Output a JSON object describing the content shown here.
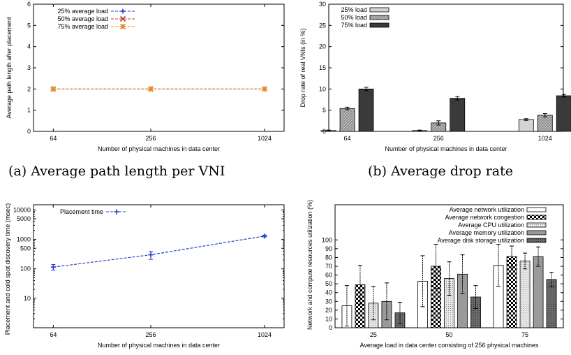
{
  "captions": {
    "a": "(a) Average path length per VNI",
    "b": "(b) Average drop rate"
  },
  "chart_data": [
    {
      "id": "a",
      "type": "line",
      "xlabel": "Number of physical machines in data center",
      "ylabel": "Average path length after placement",
      "categories": [
        "64",
        "256",
        "1024"
      ],
      "ylim": [
        0,
        6
      ],
      "yticks": [
        0,
        1,
        2,
        3,
        4,
        5,
        6
      ],
      "legend_position": "top-left",
      "series": [
        {
          "name": "25% average load",
          "values": [
            2,
            2,
            2
          ],
          "color": "#1f3fd6",
          "marker": "plus"
        },
        {
          "name": "50% average load",
          "values": [
            2,
            2,
            2
          ],
          "color": "#c0392b",
          "marker": "x"
        },
        {
          "name": "75% average load",
          "values": [
            2,
            2,
            2
          ],
          "color": "#ef8a22",
          "marker": "star"
        }
      ]
    },
    {
      "id": "b",
      "type": "bar",
      "xlabel": "Number of physical machines in data center",
      "ylabel": "Drop rate of real VNIs (in %)",
      "categories": [
        "64",
        "256",
        "1024"
      ],
      "ylim": [
        0,
        30
      ],
      "yticks": [
        0,
        5,
        10,
        15,
        20,
        25,
        30
      ],
      "legend_position": "top-left",
      "series": [
        {
          "name": "25% load",
          "values": [
            0.2,
            0.2,
            2.8
          ],
          "errors": [
            0.1,
            0.1,
            0.2
          ],
          "color": "#d4d4d4",
          "pattern": "solid"
        },
        {
          "name": "50% load",
          "values": [
            5.4,
            2.0,
            3.8
          ],
          "errors": [
            0.3,
            0.5,
            0.4
          ],
          "color": "#8c8c8c",
          "pattern": "hatch"
        },
        {
          "name": "75% load",
          "values": [
            10.0,
            7.8,
            8.4
          ],
          "errors": [
            0.4,
            0.4,
            0.3
          ],
          "color": "#3a3a3a",
          "pattern": "solid"
        }
      ]
    },
    {
      "id": "c",
      "type": "line",
      "xlabel": "Number of physical machines in data center",
      "ylabel": "Placement and cold spot discovery time (msec)",
      "categories": [
        "64",
        "256",
        "1024"
      ],
      "yscale": "log",
      "ylim": [
        1,
        15000
      ],
      "yticks": [
        10,
        100,
        500,
        1000,
        5000,
        10000
      ],
      "ytick_labels": [
        "10",
        "100",
        "500",
        "1000",
        "5000",
        "10000"
      ],
      "legend_position": "top-left",
      "series": [
        {
          "name": "Placement time",
          "values": [
            115,
            300,
            1300
          ],
          "errors": [
            25,
            90,
            100
          ],
          "color": "#1f3fd6",
          "marker": "plus"
        }
      ]
    },
    {
      "id": "d",
      "type": "bar",
      "xlabel": "Average load in data center consisting of 256 physical machines",
      "ylabel": "Network and compute resources utilization (%)",
      "categories": [
        "25",
        "50",
        "75"
      ],
      "ylim": [
        0,
        140
      ],
      "yticks": [
        0,
        10,
        20,
        30,
        40,
        50,
        60,
        70,
        80,
        90,
        100
      ],
      "legend_position": "top-right",
      "series": [
        {
          "name": "Average network utilization",
          "values": [
            25,
            53,
            71
          ],
          "errors": [
            23,
            29,
            24
          ],
          "color": "#ffffff",
          "pattern": "empty"
        },
        {
          "name": "Average network congestion",
          "values": [
            49,
            70,
            81
          ],
          "errors": [
            22,
            25,
            12
          ],
          "color": "#ffffff",
          "pattern": "checker"
        },
        {
          "name": "Average CPU utilization",
          "values": [
            28,
            56,
            76
          ],
          "errors": [
            19,
            19,
            9
          ],
          "color": "#d8d8d8",
          "pattern": "dots"
        },
        {
          "name": "Average memory utilization",
          "values": [
            30,
            61,
            81
          ],
          "errors": [
            21,
            22,
            11
          ],
          "color": "#9a9a9a",
          "pattern": "solid"
        },
        {
          "name": "Average disk storage utilization",
          "values": [
            17,
            35,
            55
          ],
          "errors": [
            12,
            13,
            8
          ],
          "color": "#6a6a6a",
          "pattern": "dots-dark"
        }
      ]
    }
  ]
}
